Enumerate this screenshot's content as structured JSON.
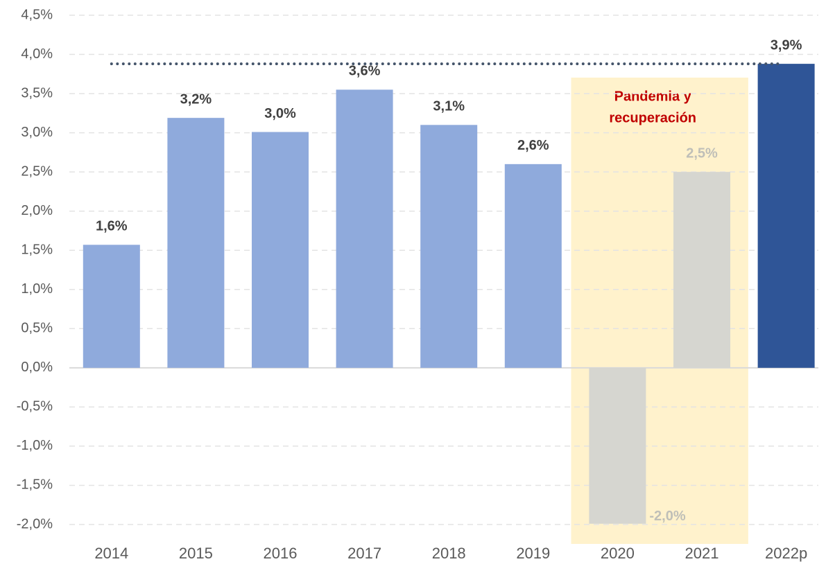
{
  "chart_data": {
    "type": "bar",
    "categories": [
      "2014",
      "2015",
      "2016",
      "2017",
      "2018",
      "2019",
      "2020",
      "2021",
      "2022p"
    ],
    "values": [
      1.57,
      3.19,
      3.01,
      3.55,
      3.1,
      2.6,
      -1.99,
      2.5,
      3.88
    ],
    "value_labels": [
      "1,6%",
      "3,2%",
      "3,0%",
      "3,6%",
      "3,1%",
      "2,6%",
      "-2,0%",
      "2,5%",
      "3,9%"
    ],
    "colors": [
      "#8faadc",
      "#8faadc",
      "#8faadc",
      "#8faadc",
      "#8faadc",
      "#8faadc",
      "#d6d6d0",
      "#d6d6d0",
      "#2f5597"
    ],
    "label_colors": [
      "#404040",
      "#404040",
      "#404040",
      "#404040",
      "#404040",
      "#404040",
      "#bfbfb8",
      "#bfbfb8",
      "#404040"
    ],
    "reference_line": 3.88,
    "highlight": {
      "categories": [
        "2020",
        "2021"
      ],
      "color": "#fff2cc",
      "label": [
        "Pandemia y",
        "recuperación"
      ],
      "label_color": "#c00000"
    },
    "ylim": [
      -2.0,
      4.5
    ],
    "yticks": [
      {
        "value": -2.0,
        "label": "-2,0%"
      },
      {
        "value": -1.5,
        "label": "-1,5%"
      },
      {
        "value": -1.0,
        "label": "-1,0%"
      },
      {
        "value": -0.5,
        "label": "-0,5%"
      },
      {
        "value": 0.0,
        "label": "0,0%"
      },
      {
        "value": 0.5,
        "label": "0,5%"
      },
      {
        "value": 1.0,
        "label": "1,0%"
      },
      {
        "value": 1.5,
        "label": "1,5%"
      },
      {
        "value": 2.0,
        "label": "2,0%"
      },
      {
        "value": 2.5,
        "label": "2,5%"
      },
      {
        "value": 3.0,
        "label": "3,0%"
      },
      {
        "value": 3.5,
        "label": "3,5%"
      },
      {
        "value": 4.0,
        "label": "4,0%"
      },
      {
        "value": 4.5,
        "label": "4,5%"
      }
    ],
    "grid": true
  }
}
